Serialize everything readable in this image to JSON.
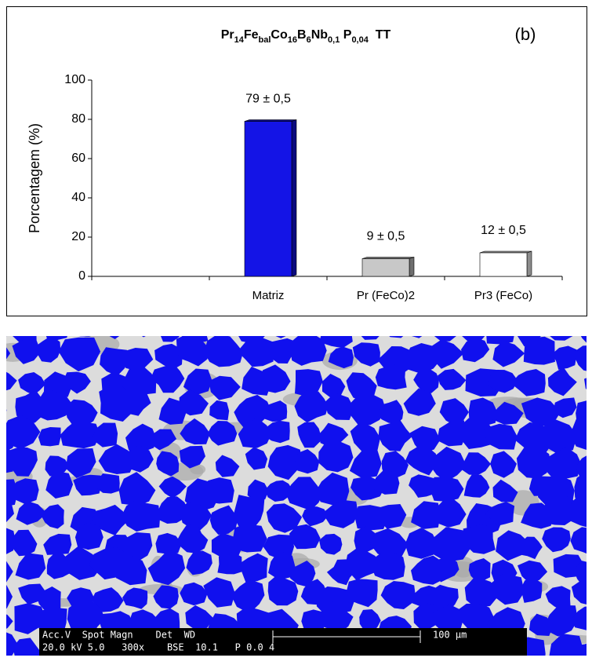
{
  "chart_data": {
    "type": "bar3d",
    "title": [
      {
        "text": "Pr"
      },
      {
        "text": "14",
        "sub": true
      },
      {
        "text": "Fe"
      },
      {
        "text": "bal",
        "sub": true
      },
      {
        "text": "Co"
      },
      {
        "text": "16",
        "sub": true
      },
      {
        "text": "B"
      },
      {
        "text": "6",
        "sub": true
      },
      {
        "text": "Nb"
      },
      {
        "text": "0,1",
        "sub": true
      },
      {
        "text": " P"
      },
      {
        "text": "0,04",
        "sub": true
      },
      {
        "text": "  TT"
      }
    ],
    "annotation": "(b)",
    "y_label": "Porcentagem (%)",
    "categories": [
      null,
      "Matriz",
      "Pr (FeCo)2",
      "Pr3 (FeCo)"
    ],
    "values": [
      null,
      79,
      9,
      12
    ],
    "value_labels": [
      null,
      "79 ± 0,5",
      "9 ± 0,5",
      "12 ± 0,5"
    ],
    "colors": [
      null,
      "#1414e6",
      "#c8c8c8",
      "#ffffff"
    ],
    "ylim": [
      0,
      100
    ],
    "yticks": [
      0,
      20,
      40,
      60,
      80,
      100
    ]
  },
  "micrograph": {
    "info_row1": "Acc.V  Spot Magn    Det  WD",
    "info_row2": "20.0 kV 5.0   300x    BSE  10.1   P 0.0 4",
    "scale_label": "100 µm"
  }
}
